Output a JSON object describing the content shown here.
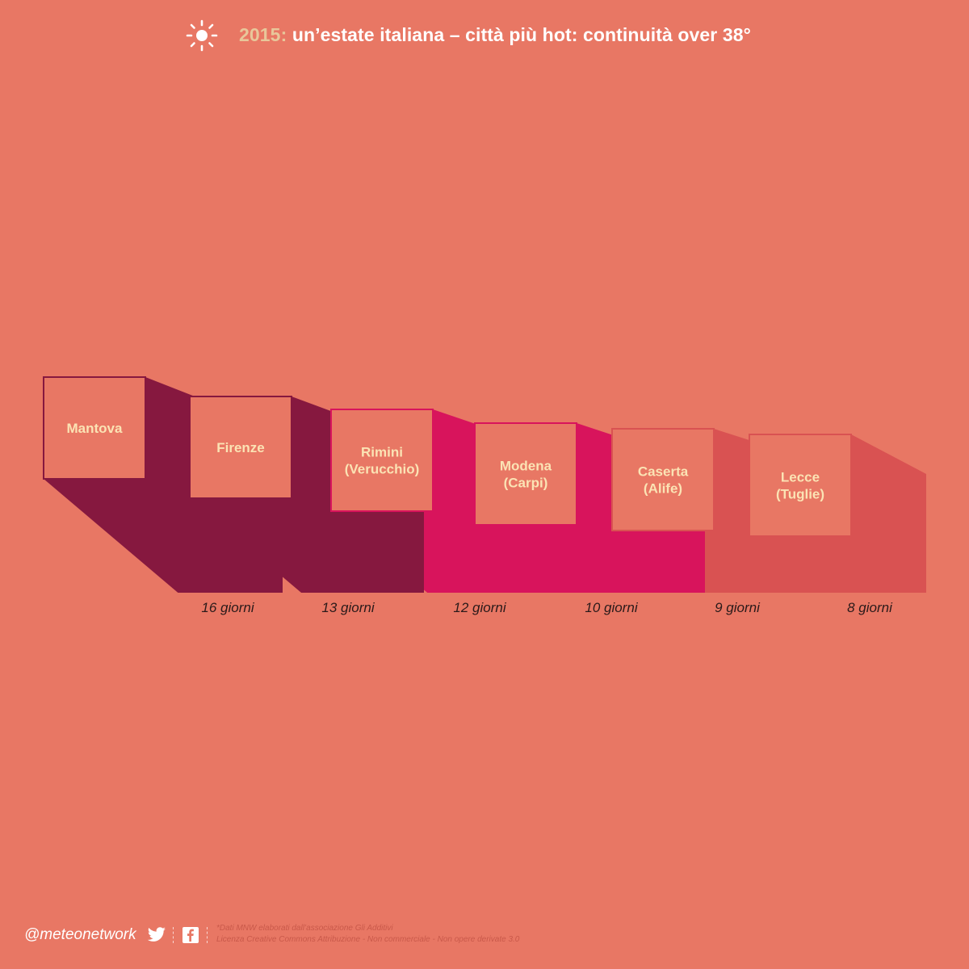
{
  "header": {
    "year": "2015:",
    "title": "un’estate italiana – città più hot: continuità over 38°",
    "icon": "sun-icon"
  },
  "chart_data": {
    "type": "bar",
    "title": "2015: un’estate italiana – città più hot: continuità over 38°",
    "categories": [
      "Mantova",
      "Firenze",
      "Rimini (Verucchio)",
      "Modena (Carpi)",
      "Caserta (Alife)",
      "Lecce (Tuglie)"
    ],
    "category_lines": [
      [
        "Mantova"
      ],
      [
        "Firenze"
      ],
      [
        "Rimini",
        "(Verucchio)"
      ],
      [
        "Modena",
        "(Carpi)"
      ],
      [
        "Caserta",
        "(Alife)"
      ],
      [
        "Lecce",
        "(Tuglie)"
      ]
    ],
    "values": [
      16,
      13,
      12,
      10,
      9,
      8
    ],
    "value_labels": [
      "16 giorni",
      "13 giorni",
      "12 giorni",
      "10 giorni",
      "9 giorni",
      "8 giorni"
    ],
    "unit": "giorni",
    "colors": {
      "box_fill": "#E87764",
      "label_color": "#FBE3B4",
      "shadow_dark": "#86183F",
      "shadow_mid": "#D8145C",
      "shadow_light": "#D95252"
    }
  },
  "footer": {
    "handle": "@meteonetwork",
    "twitter_icon": "twitter-icon",
    "facebook_icon": "facebook-icon",
    "credit_line1": "*Dati MNW elaborati dall’associazione Gli Additivi",
    "credit_line2": "Licenza Creative Commons  Attribuzione - Non commerciale - Non opere derivate 3.0"
  }
}
